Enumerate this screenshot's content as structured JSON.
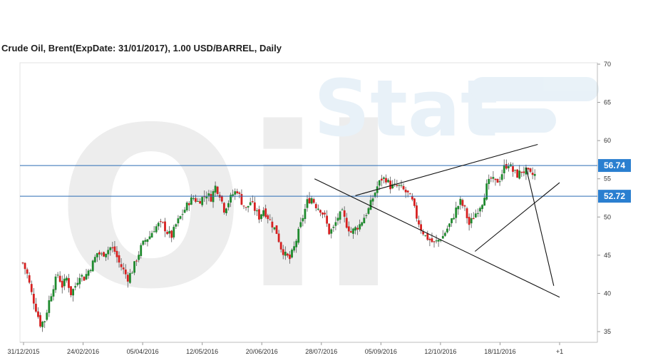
{
  "chart_data": {
    "type": "candlestick",
    "title": "Crude Oil, Brent(ExpDate: 31/01/2017), 1.00 USD/BARREL, Daily",
    "watermark": [
      "Oil",
      "Stat"
    ],
    "ylim": [
      33,
      70
    ],
    "yticks": [
      35,
      40,
      45,
      50,
      55,
      60,
      65,
      70
    ],
    "xticks": [
      "31/12/2015",
      "24/02/2016",
      "05/04/2016",
      "12/05/2016",
      "20/06/2016",
      "28/07/2016",
      "05/09/2016",
      "12/10/2016",
      "18/11/2016",
      "+1"
    ],
    "levels": [
      {
        "value": 56.74,
        "label": "56.74"
      },
      {
        "value": 52.72,
        "label": "52.72"
      }
    ],
    "close_path": [
      [
        0,
        44
      ],
      [
        3,
        42.5
      ],
      [
        6,
        40
      ],
      [
        9,
        38
      ],
      [
        12,
        36
      ],
      [
        15,
        36.5
      ],
      [
        18,
        39
      ],
      [
        21,
        41
      ],
      [
        24,
        42.5
      ],
      [
        27,
        41
      ],
      [
        30,
        42
      ],
      [
        33,
        40
      ],
      [
        36,
        41
      ],
      [
        39,
        42.5
      ],
      [
        42,
        42
      ],
      [
        45,
        43
      ],
      [
        48,
        44
      ],
      [
        51,
        45.3
      ],
      [
        54,
        45
      ],
      [
        57,
        45.5
      ],
      [
        60,
        46
      ],
      [
        63,
        45.5
      ],
      [
        66,
        44
      ],
      [
        69,
        43
      ],
      [
        72,
        42
      ],
      [
        75,
        43
      ],
      [
        78,
        44.5
      ],
      [
        81,
        46
      ],
      [
        84,
        47
      ],
      [
        87,
        47.5
      ],
      [
        90,
        48.5
      ],
      [
        93,
        49
      ],
      [
        96,
        49
      ],
      [
        99,
        48
      ],
      [
        102,
        47.5
      ],
      [
        105,
        49
      ],
      [
        108,
        50
      ],
      [
        111,
        51
      ],
      [
        114,
        52
      ],
      [
        117,
        52.5
      ],
      [
        120,
        52
      ],
      [
        123,
        52.5
      ],
      [
        126,
        53
      ],
      [
        129,
        52.5
      ],
      [
        132,
        54
      ],
      [
        135,
        53
      ],
      [
        138,
        51
      ],
      [
        141,
        52
      ],
      [
        144,
        53
      ],
      [
        147,
        53.5
      ],
      [
        150,
        52
      ],
      [
        153,
        51
      ],
      [
        156,
        52
      ],
      [
        159,
        51
      ],
      [
        162,
        50
      ],
      [
        165,
        51
      ],
      [
        168,
        50
      ],
      [
        171,
        49
      ],
      [
        174,
        48
      ],
      [
        177,
        46
      ],
      [
        180,
        45
      ],
      [
        183,
        44.5
      ],
      [
        186,
        46
      ],
      [
        189,
        48
      ],
      [
        192,
        50
      ],
      [
        195,
        52
      ],
      [
        198,
        52.5
      ],
      [
        201,
        51.5
      ],
      [
        204,
        51
      ],
      [
        207,
        50
      ],
      [
        210,
        48
      ],
      [
        213,
        48.5
      ],
      [
        216,
        50
      ],
      [
        219,
        50.5
      ],
      [
        222,
        49
      ],
      [
        225,
        48
      ],
      [
        228,
        48.5
      ],
      [
        231,
        49
      ],
      [
        234,
        50
      ],
      [
        237,
        51
      ],
      [
        240,
        52.5
      ],
      [
        243,
        54
      ],
      [
        246,
        55
      ],
      [
        249,
        55
      ],
      [
        252,
        54
      ],
      [
        255,
        54
      ],
      [
        258,
        54
      ],
      [
        261,
        53.5
      ],
      [
        264,
        53
      ],
      [
        267,
        52
      ],
      [
        270,
        50
      ],
      [
        273,
        48.5
      ],
      [
        276,
        47.5
      ],
      [
        279,
        47
      ],
      [
        282,
        46.5
      ],
      [
        285,
        47
      ],
      [
        288,
        47.5
      ],
      [
        291,
        48.5
      ],
      [
        294,
        49.5
      ],
      [
        297,
        51
      ],
      [
        300,
        52
      ],
      [
        303,
        51
      ],
      [
        306,
        49
      ],
      [
        309,
        50
      ],
      [
        312,
        51
      ],
      [
        315,
        52
      ],
      [
        318,
        54
      ],
      [
        321,
        55
      ],
      [
        324,
        54.5
      ],
      [
        327,
        55
      ],
      [
        330,
        56.5
      ],
      [
        333,
        57
      ],
      [
        336,
        56
      ],
      [
        339,
        55.5
      ],
      [
        342,
        56
      ],
      [
        345,
        56
      ],
      [
        348,
        55.5
      ],
      [
        351,
        55.5
      ]
    ],
    "trendlines": [
      {
        "name": "upper-resistance",
        "points": [
          [
            228,
            52.8
          ],
          [
            353,
            59.5
          ]
        ]
      },
      {
        "name": "lower-support",
        "points": [
          [
            310,
            45.5
          ],
          [
            368,
            54.5
          ]
        ]
      },
      {
        "name": "descending-line",
        "points": [
          [
            200,
            55
          ],
          [
            368,
            39.5
          ]
        ]
      },
      {
        "name": "projection",
        "points": [
          [
            345,
            56.5
          ],
          [
            364,
            41
          ]
        ]
      }
    ]
  }
}
